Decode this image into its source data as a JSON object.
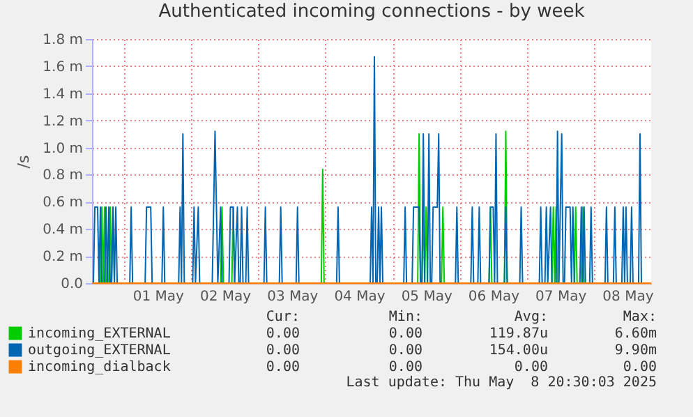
{
  "chart_data": {
    "type": "line",
    "title": "Authenticated incoming connections - by week",
    "ylabel": "/s",
    "xlim": [
      "2025-04-30T12:30",
      "2025-05-08T20:30"
    ],
    "xticks": [
      {
        "value": "2025-05-01T00:00",
        "label": null
      },
      {
        "value": "2025-05-01T12:00",
        "label": "01 May"
      },
      {
        "value": "2025-05-02T00:00",
        "label": null
      },
      {
        "value": "2025-05-02T12:00",
        "label": "02 May"
      },
      {
        "value": "2025-05-03T00:00",
        "label": null
      },
      {
        "value": "2025-05-03T12:00",
        "label": "03 May"
      },
      {
        "value": "2025-05-04T00:00",
        "label": null
      },
      {
        "value": "2025-05-04T12:00",
        "label": "04 May"
      },
      {
        "value": "2025-05-05T00:00",
        "label": null
      },
      {
        "value": "2025-05-05T12:00",
        "label": "05 May"
      },
      {
        "value": "2025-05-06T00:00",
        "label": null
      },
      {
        "value": "2025-05-06T12:00",
        "label": "06 May"
      },
      {
        "value": "2025-05-07T00:00",
        "label": null
      },
      {
        "value": "2025-05-07T12:00",
        "label": "07 May"
      },
      {
        "value": "2025-05-08T00:00",
        "label": null
      },
      {
        "value": "2025-05-08T12:00",
        "label": "08 May"
      }
    ],
    "ylim": [
      0,
      1.8
    ],
    "yticks": [
      {
        "value": 0,
        "label": "0.0"
      },
      {
        "value": 0.2,
        "label": "0.2 m"
      },
      {
        "value": 0.4,
        "label": "0.4 m"
      },
      {
        "value": 0.6,
        "label": "0.6 m"
      },
      {
        "value": 0.8,
        "label": "0.8 m"
      },
      {
        "value": 1.0,
        "label": "1.0 m"
      },
      {
        "value": 1.2,
        "label": "1.2 m"
      },
      {
        "value": 1.4,
        "label": "1.4 m"
      },
      {
        "value": 1.6,
        "label": "1.6 m"
      },
      {
        "value": 1.8,
        "label": "1.8 m"
      }
    ],
    "grid": true,
    "legend": "bottom",
    "series": [
      {
        "name": "incoming_EXTERNAL",
        "color": "#00cc00",
        "x": [
          "2025-04-30T12:30",
          "2025-04-30T15:30",
          "2025-04-30T16:00",
          "2025-04-30T16:30",
          "2025-04-30T17:00",
          "2025-04-30T17:30",
          "2025-04-30T18:30",
          "2025-04-30T19:00",
          "2025-04-30T19:30",
          "2025-04-30T20:00",
          "2025-04-30T20:30",
          "2025-05-02T10:30",
          "2025-05-02T11:00",
          "2025-05-02T11:30",
          "2025-05-02T14:30",
          "2025-05-02T15:00",
          "2025-05-02T15:30",
          "2025-05-03T22:30",
          "2025-05-03T23:00",
          "2025-05-03T23:30",
          "2025-05-05T09:00",
          "2025-05-05T09:30",
          "2025-05-05T10:00",
          "2025-05-05T10:30",
          "2025-05-05T11:00",
          "2025-05-05T11:30",
          "2025-05-05T12:00",
          "2025-05-05T12:30",
          "2025-05-05T17:30",
          "2025-05-05T18:00",
          "2025-05-05T18:30",
          "2025-05-06T10:30",
          "2025-05-06T11:00",
          "2025-05-06T11:30",
          "2025-05-06T16:00",
          "2025-05-06T16:30",
          "2025-05-06T17:00",
          "2025-05-07T09:00",
          "2025-05-07T09:30",
          "2025-05-07T10:00",
          "2025-05-07T10:30",
          "2025-05-07T11:00",
          "2025-05-07T17:00",
          "2025-05-07T17:30",
          "2025-05-07T18:00",
          "2025-05-07T19:30",
          "2025-05-07T20:00",
          "2025-05-07T20:30",
          "2025-05-08T20:30"
        ],
        "values": [
          0,
          0,
          0.56,
          0,
          0.56,
          0,
          0,
          0.56,
          0,
          0.56,
          0,
          0,
          0.56,
          0,
          0,
          0.56,
          0,
          0,
          0.84,
          0,
          0,
          1.1,
          0,
          0,
          0.56,
          0,
          0.56,
          0,
          0,
          0.56,
          0,
          0,
          0.56,
          0,
          0,
          1.12,
          0,
          0,
          0.56,
          0,
          0.56,
          0,
          0,
          0.56,
          0,
          0,
          0.56,
          0,
          0
        ]
      },
      {
        "name": "outgoing_EXTERNAL",
        "color": "#0066b3",
        "x": [
          "2025-04-30T12:30",
          "2025-04-30T13:00",
          "2025-04-30T13:30",
          "2025-04-30T14:30",
          "2025-04-30T15:00",
          "2025-04-30T15:30",
          "2025-04-30T16:00",
          "2025-04-30T17:00",
          "2025-04-30T17:30",
          "2025-04-30T18:00",
          "2025-04-30T18:30",
          "2025-04-30T19:00",
          "2025-04-30T19:30",
          "2025-04-30T20:00",
          "2025-04-30T20:30",
          "2025-04-30T21:00",
          "2025-04-30T21:30",
          "2025-05-01T02:00",
          "2025-05-01T02:30",
          "2025-05-01T03:00",
          "2025-05-01T07:30",
          "2025-05-01T08:00",
          "2025-05-01T09:30",
          "2025-05-01T10:00",
          "2025-05-01T13:30",
          "2025-05-01T14:00",
          "2025-05-01T14:30",
          "2025-05-01T19:30",
          "2025-05-01T20:00",
          "2025-05-01T20:30",
          "2025-05-01T21:00",
          "2025-05-01T21:30",
          "2025-05-02T00:30",
          "2025-05-02T01:00",
          "2025-05-02T01:30",
          "2025-05-02T02:30",
          "2025-05-02T03:00",
          "2025-05-02T07:30",
          "2025-05-02T08:00",
          "2025-05-02T08:30",
          "2025-05-02T09:00",
          "2025-05-02T09:30",
          "2025-05-02T10:30",
          "2025-05-02T11:00",
          "2025-05-02T13:30",
          "2025-05-02T14:00",
          "2025-05-02T15:00",
          "2025-05-02T15:30",
          "2025-05-02T16:30",
          "2025-05-02T17:00",
          "2025-05-02T17:30",
          "2025-05-02T18:00",
          "2025-05-02T18:30",
          "2025-05-02T19:30",
          "2025-05-02T20:00",
          "2025-05-02T20:30",
          "2025-05-03T02:00",
          "2025-05-03T02:30",
          "2025-05-03T03:00",
          "2025-05-03T07:30",
          "2025-05-03T08:00",
          "2025-05-03T08:30",
          "2025-05-03T13:30",
          "2025-05-03T14:00",
          "2025-05-03T14:30",
          "2025-05-04T04:00",
          "2025-05-04T04:30",
          "2025-05-04T05:00",
          "2025-05-04T16:00",
          "2025-05-04T16:30",
          "2025-05-04T17:00",
          "2025-05-04T17:30",
          "2025-05-04T18:00",
          "2025-05-04T18:30",
          "2025-05-04T19:00",
          "2025-05-04T19:30",
          "2025-05-04T20:00",
          "2025-05-04T20:30",
          "2025-05-05T04:00",
          "2025-05-05T04:30",
          "2025-05-05T05:00",
          "2025-05-05T07:00",
          "2025-05-05T07:30",
          "2025-05-05T09:30",
          "2025-05-05T10:00",
          "2025-05-05T10:30",
          "2025-05-05T11:00",
          "2025-05-05T11:30",
          "2025-05-05T12:30",
          "2025-05-05T13:00",
          "2025-05-05T13:30",
          "2025-05-05T14:00",
          "2025-05-05T14:30",
          "2025-05-05T16:00",
          "2025-05-05T16:30",
          "2025-05-05T17:00",
          "2025-05-05T22:30",
          "2025-05-05T23:00",
          "2025-05-05T23:30",
          "2025-05-06T04:00",
          "2025-05-06T04:30",
          "2025-05-06T05:00",
          "2025-05-06T06:30",
          "2025-05-06T07:00",
          "2025-05-06T07:30",
          "2025-05-06T10:30",
          "2025-05-06T11:00",
          "2025-05-06T12:00",
          "2025-05-06T12:30",
          "2025-05-06T13:00",
          "2025-05-06T13:30",
          "2025-05-06T16:00",
          "2025-05-06T16:30",
          "2025-05-06T17:00",
          "2025-05-06T21:30",
          "2025-05-06T22:00",
          "2025-05-06T22:30",
          "2025-05-07T04:30",
          "2025-05-07T05:00",
          "2025-05-07T05:30",
          "2025-05-07T06:30",
          "2025-05-07T07:00",
          "2025-05-07T07:30",
          "2025-05-07T08:30",
          "2025-05-07T09:00",
          "2025-05-07T10:30",
          "2025-05-07T11:00",
          "2025-05-07T11:30",
          "2025-05-07T12:30",
          "2025-05-07T13:00",
          "2025-05-07T13:30",
          "2025-05-07T14:00",
          "2025-05-07T15:30",
          "2025-05-07T16:00",
          "2025-05-07T16:30",
          "2025-05-07T17:00",
          "2025-05-07T19:00",
          "2025-05-07T19:30",
          "2025-05-07T20:00",
          "2025-05-07T20:30",
          "2025-05-07T21:00",
          "2025-05-07T22:30",
          "2025-05-07T23:00",
          "2025-05-07T23:30",
          "2025-05-08T04:00",
          "2025-05-08T04:30",
          "2025-05-08T05:00",
          "2025-05-08T07:00",
          "2025-05-08T07:30",
          "2025-05-08T08:00",
          "2025-05-08T10:00",
          "2025-05-08T10:30",
          "2025-05-08T11:00",
          "2025-05-08T11:30",
          "2025-05-08T12:00",
          "2025-05-08T13:00",
          "2025-05-08T13:30",
          "2025-05-08T14:00",
          "2025-05-08T16:00",
          "2025-05-08T16:30",
          "2025-05-08T17:00",
          "2025-05-08T20:30"
        ],
        "values": [
          0,
          0,
          0.56,
          0.56,
          0,
          0.56,
          0,
          0,
          0.56,
          0,
          0.56,
          0,
          0,
          0.56,
          0,
          0.56,
          0,
          0,
          0.56,
          0,
          0,
          0.56,
          0.56,
          0,
          0,
          0.56,
          0,
          0,
          0.56,
          0,
          1.1,
          0,
          0,
          0.56,
          0,
          0.56,
          0,
          0,
          0.56,
          1.12,
          0.56,
          0,
          0.56,
          0,
          0,
          0.56,
          0.56,
          0,
          0.56,
          0,
          0,
          0.56,
          0,
          0,
          0.56,
          0,
          0,
          0.56,
          0,
          0,
          0.56,
          0,
          0,
          0.56,
          0,
          0,
          0.56,
          0,
          0,
          0.56,
          0,
          1.67,
          0,
          0,
          0.56,
          0,
          0.56,
          0,
          0,
          0.56,
          0,
          0,
          0.56,
          0.56,
          0,
          0,
          1.1,
          0,
          0,
          1.1,
          0,
          0,
          0.56,
          0.56,
          1.1,
          0,
          0,
          0.56,
          0,
          0,
          0.56,
          0,
          0,
          0.56,
          0,
          0,
          0.56,
          0.56,
          0,
          1.1,
          0,
          0,
          0.56,
          0,
          0,
          0.56,
          0,
          0,
          0.56,
          0,
          0,
          0.56,
          0,
          0.56,
          0,
          0,
          1.12,
          0,
          1.1,
          0,
          0,
          0.56,
          0.56,
          0,
          0.56,
          0,
          0,
          0.56,
          0,
          0.56,
          0,
          0,
          0.56,
          0,
          0,
          0.56,
          0,
          0,
          0.56,
          0,
          0,
          0.56,
          0,
          0.56,
          0,
          0,
          0.56,
          0,
          0,
          1.1,
          0,
          0
        ]
      },
      {
        "name": "incoming_dialback",
        "color": "#ff8000",
        "x": [
          "2025-04-30T12:30",
          "2025-05-08T20:30"
        ],
        "values": [
          0,
          0
        ]
      }
    ],
    "annotations": [
      "Cur:",
      "Min:",
      "Avg:",
      "Max:",
      "0.00",
      "0.00",
      "119.87u",
      "6.60m",
      "0.00",
      "0.00",
      "154.00u",
      "9.90m",
      "0.00",
      "0.00",
      "0.00",
      "0.00",
      "Last update: Thu May  8 20:30:03 2025"
    ]
  }
}
